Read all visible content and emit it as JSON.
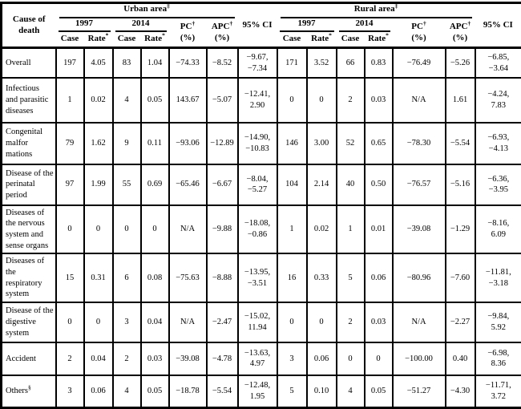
{
  "table": {
    "header": {
      "cause_of_death": "Cause of death",
      "urban_group": {
        "label": "Urban area",
        "sup": "‡"
      },
      "rural_group": {
        "label": "Rural area",
        "sup": "‡"
      },
      "year_1": "1997",
      "year_2": "2014",
      "case_label": "Case",
      "rate_label": "Rate",
      "rate_sup": "*",
      "pc_label": "PC",
      "pc_sup": "†",
      "pc_unit": "(%)",
      "apc_label": "APC",
      "apc_sup": "†",
      "apc_unit": "(%)",
      "ci_label": "95% CI"
    },
    "rows": [
      {
        "cause": "Overall",
        "cause_sup": "",
        "urban": [
          "197",
          "4.05",
          "83",
          "1.04",
          "−74.33",
          "−8.52",
          "−9.67, −7.34"
        ],
        "rural": [
          "171",
          "3.52",
          "66",
          "0.83",
          "−76.49",
          "−5.26",
          "−6.85, −3.64"
        ]
      },
      {
        "cause": "Infectious and parasitic diseases",
        "cause_sup": "",
        "urban": [
          "1",
          "0.02",
          "4",
          "0.05",
          "143.67",
          "−5.07",
          "−12.41, 2.90"
        ],
        "rural": [
          "0",
          "0",
          "2",
          "0.03",
          "N/A",
          "1.61",
          "−4.24, 7.83"
        ]
      },
      {
        "cause": "Congenital malfor mations",
        "cause_sup": "",
        "urban": [
          "79",
          "1.62",
          "9",
          "0.11",
          "−93.06",
          "−12.89",
          "−14.90, −10.83"
        ],
        "rural": [
          "146",
          "3.00",
          "52",
          "0.65",
          "−78.30",
          "−5.54",
          "−6.93, −4.13"
        ]
      },
      {
        "cause": "Disease of the perinatal period",
        "cause_sup": "",
        "urban": [
          "97",
          "1.99",
          "55",
          "0.69",
          "−65.46",
          "−6.67",
          "−8.04, −5.27"
        ],
        "rural": [
          "104",
          "2.14",
          "40",
          "0.50",
          "−76.57",
          "−5.16",
          "−6.36, −3.95"
        ]
      },
      {
        "cause": "Diseases of the nervous system and sense organs",
        "cause_sup": "",
        "urban": [
          "0",
          "0",
          "0",
          "0",
          "N/A",
          "−9.88",
          "−18.08, −0.86"
        ],
        "rural": [
          "1",
          "0.02",
          "1",
          "0.01",
          "−39.08",
          "−1.29",
          "−8.16, 6.09"
        ]
      },
      {
        "cause": "Diseases of the respiratory system",
        "cause_sup": "",
        "urban": [
          "15",
          "0.31",
          "6",
          "0.08",
          "−75.63",
          "−8.88",
          "−13.95, −3.51"
        ],
        "rural": [
          "16",
          "0.33",
          "5",
          "0.06",
          "−80.96",
          "−7.60",
          "−11.81, −3.18"
        ]
      },
      {
        "cause": "Disease of the digestive system",
        "cause_sup": "",
        "urban": [
          "0",
          "0",
          "3",
          "0.04",
          "N/A",
          "−2.47",
          "−15.02, 11.94"
        ],
        "rural": [
          "0",
          "0",
          "2",
          "0.03",
          "N/A",
          "−2.27",
          "−9.84, 5.92"
        ]
      },
      {
        "cause": "Accident",
        "cause_sup": "",
        "urban": [
          "2",
          "0.04",
          "2",
          "0.03",
          "−39.08",
          "−4.78",
          "−13.63, 4.97"
        ],
        "rural": [
          "3",
          "0.06",
          "0",
          "0",
          "−100.00",
          "0.40",
          "−6.98, 8.36"
        ]
      },
      {
        "cause": "Others",
        "cause_sup": "§",
        "urban": [
          "3",
          "0.06",
          "4",
          "0.05",
          "−18.78",
          "−5.54",
          "−12.48, 1.95"
        ],
        "rural": [
          "5",
          "0.10",
          "4",
          "0.05",
          "−51.27",
          "−4.30",
          "−11.71, 3.72"
        ]
      }
    ]
  }
}
